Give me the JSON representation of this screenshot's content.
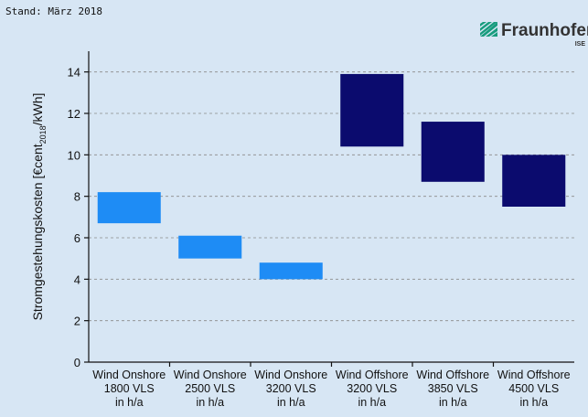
{
  "chart_data": {
    "type": "floating_bar",
    "stamp": "Stand: März 2018",
    "logo": {
      "name": "Fraunhofer",
      "unit": "ISE"
    },
    "ylabel": {
      "text": "Stromgestehungskosten [€cent",
      "sub": "2018",
      "rest": "/kWh]"
    },
    "categories": [
      [
        "Wind Onshore",
        "1800 VLS",
        "in h/a"
      ],
      [
        "Wind Onshore",
        "2500 VLS",
        "in h/a"
      ],
      [
        "Wind Onshore",
        "3200 VLS",
        "in h/a"
      ],
      [
        "Wind Offshore",
        "3200 VLS",
        "in h/a"
      ],
      [
        "Wind Offshore",
        "3850 VLS",
        "in h/a"
      ],
      [
        "Wind Offshore",
        "4500 VLS",
        "in h/a"
      ]
    ],
    "low": [
      6.7,
      5.0,
      4.0,
      10.4,
      8.7,
      7.5
    ],
    "high": [
      8.2,
      6.1,
      4.8,
      13.9,
      11.6,
      10.0
    ],
    "colors": [
      "#1e8cf5",
      "#1e8cf5",
      "#1e8cf5",
      "#0b0b6e",
      "#0b0b6e",
      "#0b0b6e"
    ],
    "ylim": [
      0,
      15
    ],
    "yticks": [
      0,
      2,
      4,
      6,
      8,
      10,
      12,
      14
    ],
    "grid": true
  }
}
